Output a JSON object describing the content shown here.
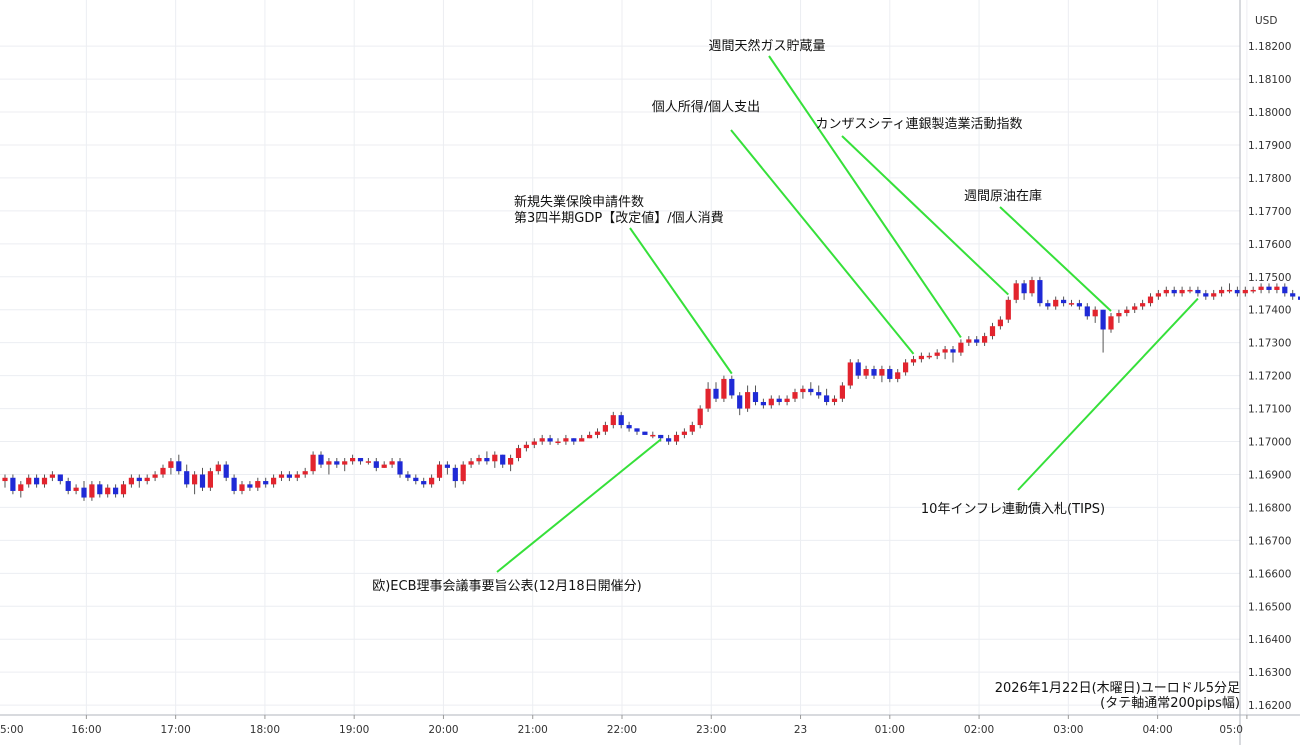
{
  "chart_data": {
    "type": "candlestick",
    "currency": "USD",
    "y_ticks": [
      "1.18200",
      "1.18100",
      "1.18000",
      "1.17900",
      "1.17800",
      "1.17700",
      "1.17600",
      "1.17500",
      "1.17400",
      "1.17300",
      "1.17200",
      "1.17100",
      "1.17000",
      "1.16900",
      "1.16800",
      "1.16700",
      "1.16600",
      "1.16500",
      "1.16400",
      "1.16300",
      "1.16200"
    ],
    "y_range": [
      1.1617,
      1.1834
    ],
    "x_ticks": [
      "5:00",
      "16:00",
      "17:00",
      "18:00",
      "19:00",
      "20:00",
      "21:00",
      "22:00",
      "23:00",
      "23",
      "01:00",
      "02:00",
      "03:00",
      "04:00",
      "05:0"
    ],
    "caption_line1": "2026年1月22日(木曜日)ユーロドル5分足",
    "caption_line2": "(タテ軸通常200pips幅)",
    "grid": true,
    "colors": {
      "up": "#e2242e",
      "down": "#1f2ad6",
      "annotation_line": "#36e03a",
      "grid": "#eceef2"
    },
    "candles": [
      {
        "o": 1.1688,
        "h": 1.169,
        "l": 1.1686,
        "c": 1.1689
      },
      {
        "o": 1.1689,
        "h": 1.169,
        "l": 1.1684,
        "c": 1.1685
      },
      {
        "o": 1.1685,
        "h": 1.1688,
        "l": 1.1683,
        "c": 1.1687
      },
      {
        "o": 1.1687,
        "h": 1.169,
        "l": 1.1686,
        "c": 1.1689
      },
      {
        "o": 1.1689,
        "h": 1.169,
        "l": 1.1686,
        "c": 1.1687
      },
      {
        "o": 1.1687,
        "h": 1.169,
        "l": 1.1686,
        "c": 1.1689
      },
      {
        "o": 1.1689,
        "h": 1.1691,
        "l": 1.1688,
        "c": 1.169
      },
      {
        "o": 1.169,
        "h": 1.169,
        "l": 1.1687,
        "c": 1.1688
      },
      {
        "o": 1.1688,
        "h": 1.1689,
        "l": 1.1684,
        "c": 1.1685
      },
      {
        "o": 1.1685,
        "h": 1.1687,
        "l": 1.1684,
        "c": 1.1686
      },
      {
        "o": 1.1686,
        "h": 1.1688,
        "l": 1.1682,
        "c": 1.1683
      },
      {
        "o": 1.1683,
        "h": 1.1688,
        "l": 1.1682,
        "c": 1.1687
      },
      {
        "o": 1.1687,
        "h": 1.1688,
        "l": 1.1683,
        "c": 1.1684
      },
      {
        "o": 1.1684,
        "h": 1.1687,
        "l": 1.1683,
        "c": 1.1686
      },
      {
        "o": 1.1686,
        "h": 1.1687,
        "l": 1.1683,
        "c": 1.1684
      },
      {
        "o": 1.1684,
        "h": 1.1688,
        "l": 1.1683,
        "c": 1.1687
      },
      {
        "o": 1.1687,
        "h": 1.169,
        "l": 1.1686,
        "c": 1.1689
      },
      {
        "o": 1.1689,
        "h": 1.169,
        "l": 1.1686,
        "c": 1.1688
      },
      {
        "o": 1.1688,
        "h": 1.169,
        "l": 1.1687,
        "c": 1.1689
      },
      {
        "o": 1.1689,
        "h": 1.1691,
        "l": 1.1688,
        "c": 1.169
      },
      {
        "o": 1.169,
        "h": 1.1693,
        "l": 1.1689,
        "c": 1.1692
      },
      {
        "o": 1.1692,
        "h": 1.1695,
        "l": 1.169,
        "c": 1.1694
      },
      {
        "o": 1.1694,
        "h": 1.1696,
        "l": 1.169,
        "c": 1.1691
      },
      {
        "o": 1.1691,
        "h": 1.1693,
        "l": 1.1686,
        "c": 1.1687
      },
      {
        "o": 1.1687,
        "h": 1.1691,
        "l": 1.1684,
        "c": 1.169
      },
      {
        "o": 1.169,
        "h": 1.1692,
        "l": 1.1685,
        "c": 1.1686
      },
      {
        "o": 1.1686,
        "h": 1.1692,
        "l": 1.1685,
        "c": 1.1691
      },
      {
        "o": 1.1691,
        "h": 1.1694,
        "l": 1.169,
        "c": 1.1693
      },
      {
        "o": 1.1693,
        "h": 1.1694,
        "l": 1.1688,
        "c": 1.1689
      },
      {
        "o": 1.1689,
        "h": 1.169,
        "l": 1.1684,
        "c": 1.1685
      },
      {
        "o": 1.1685,
        "h": 1.1688,
        "l": 1.1684,
        "c": 1.1687
      },
      {
        "o": 1.1687,
        "h": 1.1688,
        "l": 1.1685,
        "c": 1.1686
      },
      {
        "o": 1.1686,
        "h": 1.1689,
        "l": 1.1685,
        "c": 1.1688
      },
      {
        "o": 1.1688,
        "h": 1.1689,
        "l": 1.1686,
        "c": 1.1687
      },
      {
        "o": 1.1687,
        "h": 1.169,
        "l": 1.1686,
        "c": 1.1689
      },
      {
        "o": 1.1689,
        "h": 1.1691,
        "l": 1.1688,
        "c": 1.169
      },
      {
        "o": 1.169,
        "h": 1.1691,
        "l": 1.1688,
        "c": 1.1689
      },
      {
        "o": 1.1689,
        "h": 1.1691,
        "l": 1.1688,
        "c": 1.169
      },
      {
        "o": 1.169,
        "h": 1.1692,
        "l": 1.1689,
        "c": 1.1691
      },
      {
        "o": 1.1691,
        "h": 1.1697,
        "l": 1.169,
        "c": 1.1696
      },
      {
        "o": 1.1696,
        "h": 1.1697,
        "l": 1.1692,
        "c": 1.1693
      },
      {
        "o": 1.1693,
        "h": 1.1695,
        "l": 1.169,
        "c": 1.1694
      },
      {
        "o": 1.1694,
        "h": 1.1695,
        "l": 1.1692,
        "c": 1.1693
      },
      {
        "o": 1.1693,
        "h": 1.1695,
        "l": 1.1691,
        "c": 1.1694
      },
      {
        "o": 1.1694,
        "h": 1.1696,
        "l": 1.1693,
        "c": 1.1695
      },
      {
        "o": 1.1695,
        "h": 1.1695,
        "l": 1.1693,
        "c": 1.1694
      },
      {
        "o": 1.1694,
        "h": 1.1695,
        "l": 1.1693,
        "c": 1.1694
      },
      {
        "o": 1.1694,
        "h": 1.1695,
        "l": 1.1691,
        "c": 1.1692
      },
      {
        "o": 1.1692,
        "h": 1.1694,
        "l": 1.1692,
        "c": 1.1693
      },
      {
        "o": 1.1693,
        "h": 1.1695,
        "l": 1.1692,
        "c": 1.1694
      },
      {
        "o": 1.1694,
        "h": 1.1695,
        "l": 1.1689,
        "c": 1.169
      },
      {
        "o": 1.169,
        "h": 1.1691,
        "l": 1.1688,
        "c": 1.1689
      },
      {
        "o": 1.1689,
        "h": 1.169,
        "l": 1.1687,
        "c": 1.1688
      },
      {
        "o": 1.1688,
        "h": 1.1689,
        "l": 1.1686,
        "c": 1.1687
      },
      {
        "o": 1.1687,
        "h": 1.169,
        "l": 1.1686,
        "c": 1.1689
      },
      {
        "o": 1.1689,
        "h": 1.1694,
        "l": 1.1688,
        "c": 1.1693
      },
      {
        "o": 1.1693,
        "h": 1.1694,
        "l": 1.169,
        "c": 1.1692
      },
      {
        "o": 1.1692,
        "h": 1.1693,
        "l": 1.1686,
        "c": 1.1688
      },
      {
        "o": 1.1688,
        "h": 1.1694,
        "l": 1.1687,
        "c": 1.1693
      },
      {
        "o": 1.1693,
        "h": 1.1695,
        "l": 1.1692,
        "c": 1.1694
      },
      {
        "o": 1.1694,
        "h": 1.1696,
        "l": 1.1693,
        "c": 1.1695
      },
      {
        "o": 1.1695,
        "h": 1.1697,
        "l": 1.1693,
        "c": 1.1694
      },
      {
        "o": 1.1694,
        "h": 1.1697,
        "l": 1.1692,
        "c": 1.1696
      },
      {
        "o": 1.1696,
        "h": 1.1696,
        "l": 1.1692,
        "c": 1.1693
      },
      {
        "o": 1.1693,
        "h": 1.1696,
        "l": 1.1691,
        "c": 1.1695
      },
      {
        "o": 1.1695,
        "h": 1.1699,
        "l": 1.1694,
        "c": 1.1698
      },
      {
        "o": 1.1698,
        "h": 1.17,
        "l": 1.1697,
        "c": 1.1699
      },
      {
        "o": 1.1699,
        "h": 1.1701,
        "l": 1.1698,
        "c": 1.17
      },
      {
        "o": 1.17,
        "h": 1.1702,
        "l": 1.1699,
        "c": 1.1701
      },
      {
        "o": 1.1701,
        "h": 1.1702,
        "l": 1.1699,
        "c": 1.17
      },
      {
        "o": 1.17,
        "h": 1.1701,
        "l": 1.1699,
        "c": 1.17
      },
      {
        "o": 1.17,
        "h": 1.1702,
        "l": 1.1699,
        "c": 1.1701
      },
      {
        "o": 1.1701,
        "h": 1.1701,
        "l": 1.1699,
        "c": 1.17
      },
      {
        "o": 1.17,
        "h": 1.1702,
        "l": 1.17,
        "c": 1.1701
      },
      {
        "o": 1.1701,
        "h": 1.1703,
        "l": 1.1701,
        "c": 1.1702
      },
      {
        "o": 1.1702,
        "h": 1.1704,
        "l": 1.1701,
        "c": 1.1703
      },
      {
        "o": 1.1703,
        "h": 1.1706,
        "l": 1.1702,
        "c": 1.1705
      },
      {
        "o": 1.1705,
        "h": 1.1709,
        "l": 1.1704,
        "c": 1.1708
      },
      {
        "o": 1.1708,
        "h": 1.1709,
        "l": 1.1704,
        "c": 1.1705
      },
      {
        "o": 1.1705,
        "h": 1.1706,
        "l": 1.1703,
        "c": 1.1704
      },
      {
        "o": 1.1704,
        "h": 1.1704,
        "l": 1.1702,
        "c": 1.1703
      },
      {
        "o": 1.1703,
        "h": 1.1703,
        "l": 1.1702,
        "c": 1.1702
      },
      {
        "o": 1.1702,
        "h": 1.1703,
        "l": 1.1701,
        "c": 1.1702
      },
      {
        "o": 1.1702,
        "h": 1.1702,
        "l": 1.17,
        "c": 1.1701
      },
      {
        "o": 1.1701,
        "h": 1.1702,
        "l": 1.1699,
        "c": 1.17
      },
      {
        "o": 1.17,
        "h": 1.1703,
        "l": 1.1699,
        "c": 1.1702
      },
      {
        "o": 1.1702,
        "h": 1.1704,
        "l": 1.1701,
        "c": 1.1703
      },
      {
        "o": 1.1703,
        "h": 1.1706,
        "l": 1.1702,
        "c": 1.1705
      },
      {
        "o": 1.1705,
        "h": 1.1711,
        "l": 1.1704,
        "c": 1.171
      },
      {
        "o": 1.171,
        "h": 1.1718,
        "l": 1.1709,
        "c": 1.1716
      },
      {
        "o": 1.1716,
        "h": 1.1718,
        "l": 1.1712,
        "c": 1.1713
      },
      {
        "o": 1.1713,
        "h": 1.172,
        "l": 1.1712,
        "c": 1.1719
      },
      {
        "o": 1.1719,
        "h": 1.172,
        "l": 1.1713,
        "c": 1.1714
      },
      {
        "o": 1.1714,
        "h": 1.1715,
        "l": 1.1708,
        "c": 1.171
      },
      {
        "o": 1.171,
        "h": 1.1717,
        "l": 1.1709,
        "c": 1.1715
      },
      {
        "o": 1.1715,
        "h": 1.1717,
        "l": 1.1711,
        "c": 1.1712
      },
      {
        "o": 1.1712,
        "h": 1.1713,
        "l": 1.171,
        "c": 1.1711
      },
      {
        "o": 1.1711,
        "h": 1.1714,
        "l": 1.171,
        "c": 1.1713
      },
      {
        "o": 1.1713,
        "h": 1.1714,
        "l": 1.1711,
        "c": 1.1712
      },
      {
        "o": 1.1712,
        "h": 1.1714,
        "l": 1.1711,
        "c": 1.1713
      },
      {
        "o": 1.1713,
        "h": 1.1716,
        "l": 1.1712,
        "c": 1.1715
      },
      {
        "o": 1.1715,
        "h": 1.1717,
        "l": 1.1713,
        "c": 1.1716
      },
      {
        "o": 1.1716,
        "h": 1.1718,
        "l": 1.1714,
        "c": 1.1715
      },
      {
        "o": 1.1715,
        "h": 1.1717,
        "l": 1.1713,
        "c": 1.1714
      },
      {
        "o": 1.1714,
        "h": 1.1716,
        "l": 1.1711,
        "c": 1.1712
      },
      {
        "o": 1.1712,
        "h": 1.1714,
        "l": 1.1711,
        "c": 1.1713
      },
      {
        "o": 1.1713,
        "h": 1.1718,
        "l": 1.1712,
        "c": 1.1717
      },
      {
        "o": 1.1717,
        "h": 1.1725,
        "l": 1.1716,
        "c": 1.1724
      },
      {
        "o": 1.1724,
        "h": 1.1725,
        "l": 1.1719,
        "c": 1.172
      },
      {
        "o": 1.172,
        "h": 1.1723,
        "l": 1.1719,
        "c": 1.1722
      },
      {
        "o": 1.1722,
        "h": 1.1723,
        "l": 1.1719,
        "c": 1.172
      },
      {
        "o": 1.172,
        "h": 1.1723,
        "l": 1.1718,
        "c": 1.1722
      },
      {
        "o": 1.1722,
        "h": 1.1723,
        "l": 1.1718,
        "c": 1.1719
      },
      {
        "o": 1.1719,
        "h": 1.1722,
        "l": 1.1718,
        "c": 1.1721
      },
      {
        "o": 1.1721,
        "h": 1.1725,
        "l": 1.172,
        "c": 1.1724
      },
      {
        "o": 1.1724,
        "h": 1.1726,
        "l": 1.1723,
        "c": 1.1725
      },
      {
        "o": 1.1725,
        "h": 1.1727,
        "l": 1.1724,
        "c": 1.1726
      },
      {
        "o": 1.1726,
        "h": 1.1727,
        "l": 1.1725,
        "c": 1.1726
      },
      {
        "o": 1.1726,
        "h": 1.1728,
        "l": 1.1725,
        "c": 1.1727
      },
      {
        "o": 1.1727,
        "h": 1.1729,
        "l": 1.1725,
        "c": 1.1728
      },
      {
        "o": 1.1728,
        "h": 1.1729,
        "l": 1.1724,
        "c": 1.1727
      },
      {
        "o": 1.1727,
        "h": 1.1731,
        "l": 1.1726,
        "c": 1.173
      },
      {
        "o": 1.173,
        "h": 1.1732,
        "l": 1.1729,
        "c": 1.1731
      },
      {
        "o": 1.1731,
        "h": 1.1732,
        "l": 1.1729,
        "c": 1.173
      },
      {
        "o": 1.173,
        "h": 1.1733,
        "l": 1.1729,
        "c": 1.1732
      },
      {
        "o": 1.1732,
        "h": 1.1736,
        "l": 1.1731,
        "c": 1.1735
      },
      {
        "o": 1.1735,
        "h": 1.1738,
        "l": 1.1734,
        "c": 1.1737
      },
      {
        "o": 1.1737,
        "h": 1.1744,
        "l": 1.1736,
        "c": 1.1743
      },
      {
        "o": 1.1743,
        "h": 1.1749,
        "l": 1.1742,
        "c": 1.1748
      },
      {
        "o": 1.1748,
        "h": 1.1749,
        "l": 1.1743,
        "c": 1.1745
      },
      {
        "o": 1.1745,
        "h": 1.175,
        "l": 1.1744,
        "c": 1.1749
      },
      {
        "o": 1.1749,
        "h": 1.175,
        "l": 1.1741,
        "c": 1.1742
      },
      {
        "o": 1.1742,
        "h": 1.1743,
        "l": 1.174,
        "c": 1.1741
      },
      {
        "o": 1.1741,
        "h": 1.1744,
        "l": 1.174,
        "c": 1.1743
      },
      {
        "o": 1.1743,
        "h": 1.1744,
        "l": 1.1741,
        "c": 1.1742
      },
      {
        "o": 1.1742,
        "h": 1.1743,
        "l": 1.1741,
        "c": 1.1742
      },
      {
        "o": 1.1742,
        "h": 1.1743,
        "l": 1.174,
        "c": 1.1741
      },
      {
        "o": 1.1741,
        "h": 1.1742,
        "l": 1.1737,
        "c": 1.1738
      },
      {
        "o": 1.1738,
        "h": 1.1741,
        "l": 1.1736,
        "c": 1.174
      },
      {
        "o": 1.174,
        "h": 1.174,
        "l": 1.1727,
        "c": 1.1734
      },
      {
        "o": 1.1734,
        "h": 1.1739,
        "l": 1.1733,
        "c": 1.1738
      },
      {
        "o": 1.1738,
        "h": 1.174,
        "l": 1.1736,
        "c": 1.1739
      },
      {
        "o": 1.1739,
        "h": 1.1741,
        "l": 1.1738,
        "c": 1.174
      },
      {
        "o": 1.174,
        "h": 1.1742,
        "l": 1.1739,
        "c": 1.1741
      },
      {
        "o": 1.1741,
        "h": 1.1743,
        "l": 1.174,
        "c": 1.1742
      },
      {
        "o": 1.1742,
        "h": 1.1745,
        "l": 1.1741,
        "c": 1.1744
      },
      {
        "o": 1.1744,
        "h": 1.1746,
        "l": 1.1743,
        "c": 1.1745
      },
      {
        "o": 1.1745,
        "h": 1.1747,
        "l": 1.1744,
        "c": 1.1746
      },
      {
        "o": 1.1746,
        "h": 1.1747,
        "l": 1.1744,
        "c": 1.1745
      },
      {
        "o": 1.1745,
        "h": 1.1747,
        "l": 1.1744,
        "c": 1.1746
      },
      {
        "o": 1.1746,
        "h": 1.1747,
        "l": 1.1745,
        "c": 1.1746
      },
      {
        "o": 1.1746,
        "h": 1.1747,
        "l": 1.1744,
        "c": 1.1745
      },
      {
        "o": 1.1745,
        "h": 1.1746,
        "l": 1.1743,
        "c": 1.1744
      },
      {
        "o": 1.1744,
        "h": 1.1746,
        "l": 1.1743,
        "c": 1.1745
      },
      {
        "o": 1.1745,
        "h": 1.1747,
        "l": 1.1744,
        "c": 1.1746
      },
      {
        "o": 1.1746,
        "h": 1.1748,
        "l": 1.1745,
        "c": 1.1746
      },
      {
        "o": 1.1746,
        "h": 1.1747,
        "l": 1.1744,
        "c": 1.1745
      },
      {
        "o": 1.1745,
        "h": 1.1747,
        "l": 1.1744,
        "c": 1.1746
      },
      {
        "o": 1.1746,
        "h": 1.1747,
        "l": 1.1745,
        "c": 1.1746
      },
      {
        "o": 1.1746,
        "h": 1.1748,
        "l": 1.1745,
        "c": 1.1747
      },
      {
        "o": 1.1747,
        "h": 1.1748,
        "l": 1.1745,
        "c": 1.1746
      },
      {
        "o": 1.1746,
        "h": 1.1748,
        "l": 1.1745,
        "c": 1.1747
      },
      {
        "o": 1.1747,
        "h": 1.1748,
        "l": 1.1744,
        "c": 1.1745
      },
      {
        "o": 1.1745,
        "h": 1.1746,
        "l": 1.1743,
        "c": 1.1744
      },
      {
        "o": 1.1744,
        "h": 1.1745,
        "l": 1.1742,
        "c": 1.1743
      },
      {
        "o": 1.1743,
        "h": 1.1744,
        "l": 1.1742,
        "c": 1.1743
      },
      {
        "o": 1.1743,
        "h": 1.1744,
        "l": 1.1741,
        "c": 1.1742
      },
      {
        "o": 1.1742,
        "h": 1.1744,
        "l": 1.1741,
        "c": 1.1743
      },
      {
        "o": 1.1743,
        "h": 1.1744,
        "l": 1.1741,
        "c": 1.1742
      },
      {
        "o": 1.1742,
        "h": 1.1744,
        "l": 1.1741,
        "c": 1.1743
      },
      {
        "o": 1.1743,
        "h": 1.1744,
        "l": 1.1742,
        "c": 1.1744
      },
      {
        "o": 1.1744,
        "h": 1.1745,
        "l": 1.1743,
        "c": 1.1744
      },
      {
        "o": 1.1744,
        "h": 1.1745,
        "l": 1.1742,
        "c": 1.1743
      }
    ],
    "annotations": [
      {
        "lines": [
          "欧)ECB理事会議事要旨公表(12月18日開催分)"
        ],
        "candle": 83
      },
      {
        "lines": [
          "新規失業保険申請件数",
          "第3四半期GDP【改定値】/個人消費"
        ],
        "candle": 92
      },
      {
        "lines": [
          "個人所得/個人支出"
        ],
        "candle": 115
      },
      {
        "lines": [
          "週間天然ガス貯蔵量"
        ],
        "candle": 121
      },
      {
        "lines": [
          "カンザスシティ連銀製造業活動指数"
        ],
        "candle": 127
      },
      {
        "lines": [
          "週間原油在庫"
        ],
        "candle": 140
      },
      {
        "lines": [
          "10年インフレ連動債入札(TIPS)"
        ],
        "candle": 151
      }
    ]
  }
}
